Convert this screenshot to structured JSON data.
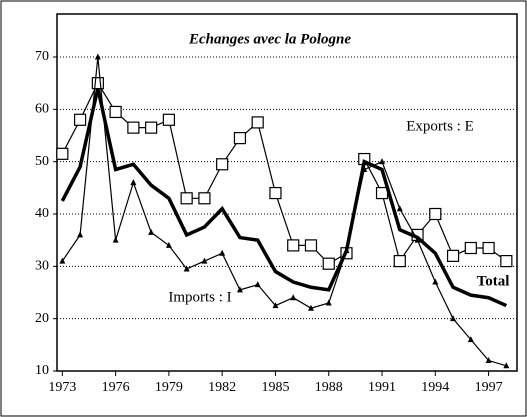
{
  "chart_data": {
    "type": "line",
    "title": "Echanges avec la Pologne",
    "x": [
      1973,
      1974,
      1975,
      1976,
      1977,
      1978,
      1979,
      1980,
      1981,
      1982,
      1983,
      1984,
      1985,
      1986,
      1987,
      1988,
      1989,
      1990,
      1991,
      1992,
      1993,
      1994,
      1995,
      1996,
      1997,
      1998
    ],
    "series": [
      {
        "name": "Exports : E",
        "color": "#000000",
        "marker": "square",
        "values": [
          51.5,
          58,
          65,
          59.5,
          56.5,
          56.5,
          58,
          43,
          43,
          49.5,
          54.5,
          57.5,
          44,
          34,
          34,
          30.5,
          32.5,
          50.5,
          44,
          31,
          36,
          40,
          32,
          33.5,
          33.5,
          31
        ]
      },
      {
        "name": "Total",
        "color": "#000000",
        "marker": "none",
        "values": [
          42.5,
          49,
          64,
          48.5,
          49.5,
          45.5,
          43,
          36,
          37.5,
          41,
          35.5,
          35,
          29,
          27,
          26,
          25.5,
          33,
          50,
          48.5,
          37,
          35.5,
          32.5,
          26,
          24.5,
          24,
          22.5
        ]
      },
      {
        "name": "Imports : I",
        "color": "#000000",
        "marker": "triangle",
        "values": [
          31,
          36,
          70,
          35,
          46,
          36.5,
          34,
          29.5,
          31,
          32.5,
          25.5,
          26.5,
          22.5,
          24,
          22,
          23,
          33,
          48.5,
          50,
          41,
          35,
          27,
          20,
          16,
          12,
          11
        ]
      }
    ],
    "xlim": [
      1972.7,
      1998.6
    ],
    "xticks": [
      1973,
      1976,
      1979,
      1982,
      1985,
      1988,
      1991,
      1994,
      1997
    ],
    "ylim": [
      10,
      70
    ],
    "yticks": [
      10,
      20,
      30,
      40,
      50,
      60,
      70
    ],
    "grid": true
  }
}
